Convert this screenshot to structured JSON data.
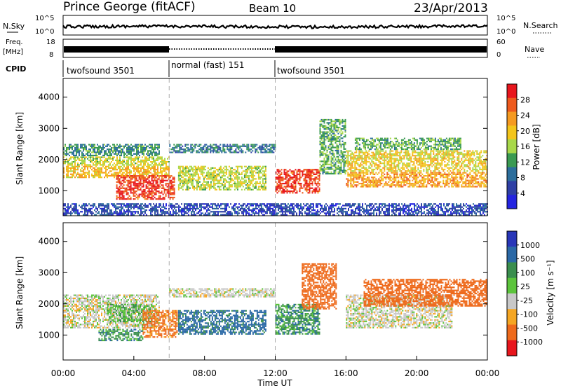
{
  "header": {
    "station": "Prince George (fitACF)",
    "beam": "Beam 10",
    "date": "23/Apr/2013"
  },
  "top_panels": {
    "nsky_label": "N.Sky",
    "nsky_ticks": [
      "10^5",
      "10^0"
    ],
    "nsearch_label": "N.Search",
    "nsearch_ticks": [
      "10^5",
      "10^0"
    ],
    "freq_label": [
      "Freq.",
      "[MHz]"
    ],
    "freq_ticks": [
      "18",
      "8"
    ],
    "nave_label": "Nave",
    "nave_ticks": [
      "60",
      "0"
    ],
    "cpid_label": "CPID",
    "cpid_segments": [
      {
        "name": "twofsound 3501",
        "start_h": 0,
        "end_h": 6
      },
      {
        "name": "normal (fast) 151",
        "start_h": 6,
        "end_h": 12
      },
      {
        "name": "twofsound 3501",
        "start_h": 12,
        "end_h": 24
      }
    ]
  },
  "power_panel": {
    "ylabel": "Slant Range [km]",
    "colorbar_label": "Power [dB]",
    "colorbar_ticks": [
      "28",
      "24",
      "20",
      "16",
      "12",
      "8",
      "4"
    ],
    "colorbar_colors": [
      "#e8161d",
      "#ee5a1d",
      "#f59a21",
      "#f3c51b",
      "#a8d84a",
      "#3a9a52",
      "#2c6e9c",
      "#2e3fa5",
      "#2424e0"
    ]
  },
  "velocity_panel": {
    "ylabel": "Slant Range [km]",
    "colorbar_label": "Velocity [m s⁻¹]",
    "colorbar_ticks": [
      "1000",
      "500",
      "100",
      "25",
      "-25",
      "-100",
      "-500",
      "-1000"
    ],
    "colorbar_colors": [
      "#2836b8",
      "#2a68a6",
      "#3a8e4e",
      "#5cc43c",
      "#c8c8c8",
      "#f5a623",
      "#ee6a1c",
      "#e8161d"
    ]
  },
  "xlabel": "Time UT",
  "chart_data": [
    {
      "type": "heatmap",
      "title": "Prince George (fitACF)",
      "subtitle": "Beam 10",
      "xlabel": "Time UT",
      "ylabel": "Slant Range [km]",
      "colorbar": "Power [dB]",
      "xlim": [
        0,
        24
      ],
      "ylim": [
        200,
        4600
      ],
      "xticks": [
        "00:00",
        "04:00",
        "08:00",
        "12:00",
        "16:00",
        "20:00",
        "00:00"
      ],
      "yticks": [
        1000,
        2000,
        3000,
        4000
      ],
      "vlines_h": [
        6,
        12
      ],
      "bands": [
        {
          "t0": 0.0,
          "t1": 5.5,
          "r0": 2100,
          "r1": 2500,
          "value": 10
        },
        {
          "t0": 0.0,
          "t1": 6.0,
          "r0": 1800,
          "r1": 2100,
          "value": 16
        },
        {
          "t0": 0.0,
          "t1": 6.0,
          "r0": 1400,
          "r1": 1800,
          "value": 20
        },
        {
          "t0": 3.0,
          "t1": 6.3,
          "r0": 700,
          "r1": 1500,
          "value": 28
        },
        {
          "t0": 6.0,
          "t1": 12.0,
          "r0": 2200,
          "r1": 2500,
          "value": 8
        },
        {
          "t0": 6.5,
          "t1": 11.5,
          "r0": 1000,
          "r1": 1800,
          "value": 16
        },
        {
          "t0": 12.0,
          "t1": 14.5,
          "r0": 900,
          "r1": 1700,
          "value": 28
        },
        {
          "t0": 14.5,
          "t1": 16.0,
          "r0": 1500,
          "r1": 3300,
          "value": 12
        },
        {
          "t0": 16.0,
          "t1": 24.0,
          "r0": 1600,
          "r1": 2300,
          "value": 18
        },
        {
          "t0": 16.0,
          "t1": 24.0,
          "r0": 1100,
          "r1": 1600,
          "value": 22
        },
        {
          "t0": 16.5,
          "t1": 22.5,
          "r0": 2300,
          "r1": 2700,
          "value": 12
        },
        {
          "t0": 0.0,
          "t1": 24.0,
          "r0": 200,
          "r1": 600,
          "value": 4
        }
      ]
    },
    {
      "type": "heatmap",
      "xlabel": "Time UT",
      "ylabel": "Slant Range [km]",
      "colorbar": "Velocity [m s⁻¹]",
      "xlim": [
        0,
        24
      ],
      "ylim": [
        200,
        4600
      ],
      "xticks": [
        "00:00",
        "04:00",
        "08:00",
        "12:00",
        "16:00",
        "20:00",
        "00:00"
      ],
      "yticks": [
        1000,
        2000,
        3000,
        4000
      ],
      "vlines_h": [
        6,
        12
      ],
      "bands": [
        {
          "t0": 0.0,
          "t1": 5.5,
          "r0": 1200,
          "r1": 2300,
          "value": 0
        },
        {
          "t0": 2.5,
          "t1": 5.0,
          "r0": 1400,
          "r1": 2000,
          "value": 100
        },
        {
          "t0": 2.0,
          "t1": 4.5,
          "r0": 800,
          "r1": 1200,
          "value": 200
        },
        {
          "t0": 4.5,
          "t1": 6.5,
          "r0": 900,
          "r1": 1800,
          "value": -200
        },
        {
          "t0": 6.0,
          "t1": 12.0,
          "r0": 2200,
          "r1": 2500,
          "value": 0
        },
        {
          "t0": 6.5,
          "t1": 11.5,
          "r0": 1000,
          "r1": 1800,
          "value": 300
        },
        {
          "t0": 12.0,
          "t1": 14.5,
          "r0": 1000,
          "r1": 2000,
          "value": 200
        },
        {
          "t0": 13.5,
          "t1": 15.5,
          "r0": 1800,
          "r1": 3300,
          "value": -300
        },
        {
          "t0": 16.0,
          "t1": 22.0,
          "r0": 1200,
          "r1": 2300,
          "value": 0
        },
        {
          "t0": 17.0,
          "t1": 24.0,
          "r0": 1900,
          "r1": 2800,
          "value": -400
        }
      ]
    }
  ]
}
